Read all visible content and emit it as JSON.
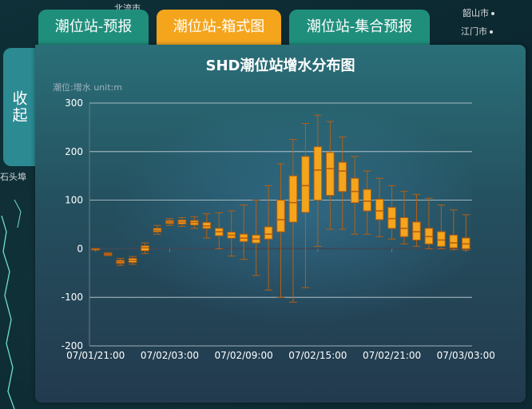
{
  "map": {
    "labels": [
      "北流市",
      "韶山市",
      "江门市"
    ]
  },
  "tabs": [
    {
      "label": "潮位站-预报",
      "active": false
    },
    {
      "label": "潮位站-箱式图",
      "active": true
    },
    {
      "label": "潮位站-集合预报",
      "active": false
    }
  ],
  "collapse_label": "收起",
  "side_label": "石头埠",
  "colors": {
    "tab_green": "#1f8f7c",
    "tab_orange": "#f4a51c",
    "box_fill": "#f4a51c",
    "box_stroke": "#b85f10"
  },
  "chart_data": {
    "type": "boxplot",
    "title": "SHD潮位站增水分布图",
    "ylabel": "潮位:增水 unit:m",
    "ylim": [
      -200,
      300
    ],
    "yticks": [
      -200,
      -100,
      0,
      100,
      200,
      300
    ],
    "xtick_labels": [
      "07/01/21:00",
      "07/02/03:00",
      "07/02/09:00",
      "07/02/15:00",
      "07/02/21:00",
      "07/03/03:00"
    ],
    "n_boxes": 31,
    "boxes": [
      [
        0,
        0,
        0,
        0,
        0
      ],
      [
        -14,
        -12,
        -11,
        -10,
        -8
      ],
      [
        -34,
        -30,
        -27,
        -24,
        -20
      ],
      [
        -32,
        -28,
        -24,
        -20,
        -16
      ],
      [
        -10,
        -4,
        2,
        6,
        12
      ],
      [
        30,
        35,
        38,
        42,
        48
      ],
      [
        48,
        52,
        55,
        58,
        62
      ],
      [
        46,
        51,
        55,
        59,
        64
      ],
      [
        42,
        49,
        54,
        58,
        66
      ],
      [
        22,
        42,
        47,
        54,
        72
      ],
      [
        0,
        27,
        35,
        42,
        74
      ],
      [
        -15,
        22,
        28,
        34,
        78
      ],
      [
        -22,
        15,
        22,
        30,
        90
      ],
      [
        -55,
        12,
        20,
        28,
        100
      ],
      [
        -85,
        20,
        30,
        45,
        130
      ],
      [
        -100,
        35,
        60,
        100,
        175
      ],
      [
        -110,
        55,
        95,
        150,
        225
      ],
      [
        -80,
        75,
        130,
        190,
        258
      ],
      [
        5,
        100,
        162,
        210,
        275
      ],
      [
        40,
        110,
        165,
        198,
        262
      ],
      [
        40,
        118,
        160,
        178,
        230
      ],
      [
        30,
        95,
        118,
        145,
        190
      ],
      [
        30,
        78,
        98,
        122,
        160
      ],
      [
        25,
        60,
        78,
        102,
        145
      ],
      [
        20,
        42,
        62,
        85,
        130
      ],
      [
        10,
        25,
        42,
        64,
        118
      ],
      [
        5,
        18,
        35,
        55,
        112
      ],
      [
        0,
        10,
        25,
        42,
        104
      ],
      [
        0,
        5,
        18,
        35,
        90
      ],
      [
        -2,
        2,
        12,
        28,
        80
      ],
      [
        -3,
        0,
        10,
        22,
        70
      ]
    ]
  }
}
